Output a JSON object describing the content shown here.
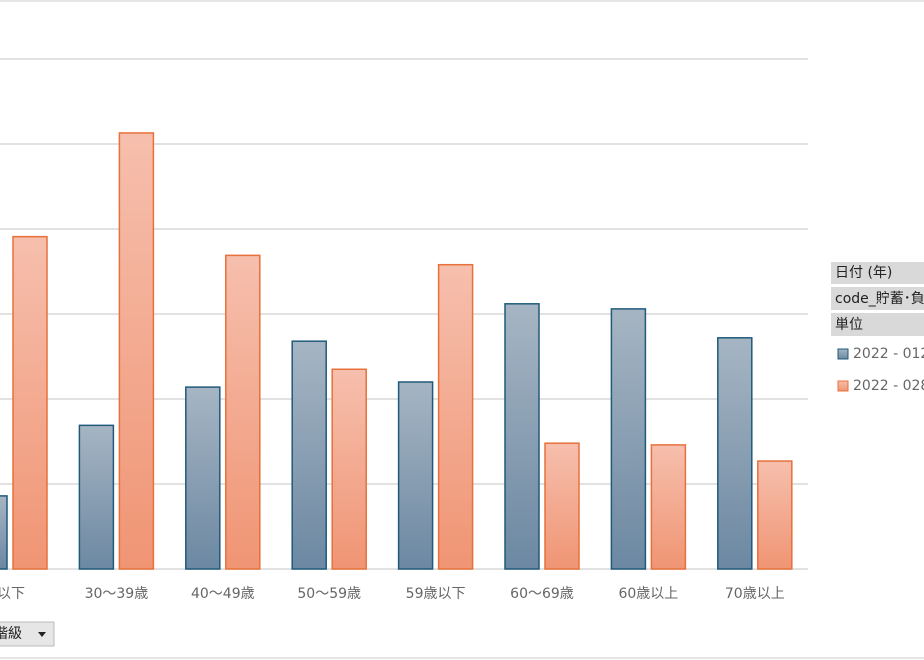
{
  "chart_data": {
    "type": "bar",
    "categories": [
      "歳以下",
      "30〜39歳",
      "40〜49歳",
      "50〜59歳",
      "59歳以下",
      "60〜69歳",
      "60歳以上",
      "70歳以上"
    ],
    "series": [
      {
        "name": "2022 - 012",
        "color": "#1f5a7a",
        "values": [
          0.86,
          1.69,
          2.14,
          2.68,
          2.2,
          3.12,
          3.06,
          2.72
        ]
      },
      {
        "name": "2022 - 028",
        "color": "#e8703a",
        "values": [
          3.91,
          5.13,
          3.69,
          2.35,
          3.58,
          1.48,
          1.46,
          1.27
        ]
      }
    ],
    "ylim": [
      0,
      6
    ],
    "yticks": [
      0,
      1,
      2,
      3,
      4,
      5,
      6
    ],
    "grid": true
  },
  "pivot_fields": {
    "headers": [
      "日付 (年)",
      "code_貯蓄･負",
      "単位"
    ],
    "axis_button": "階級"
  }
}
